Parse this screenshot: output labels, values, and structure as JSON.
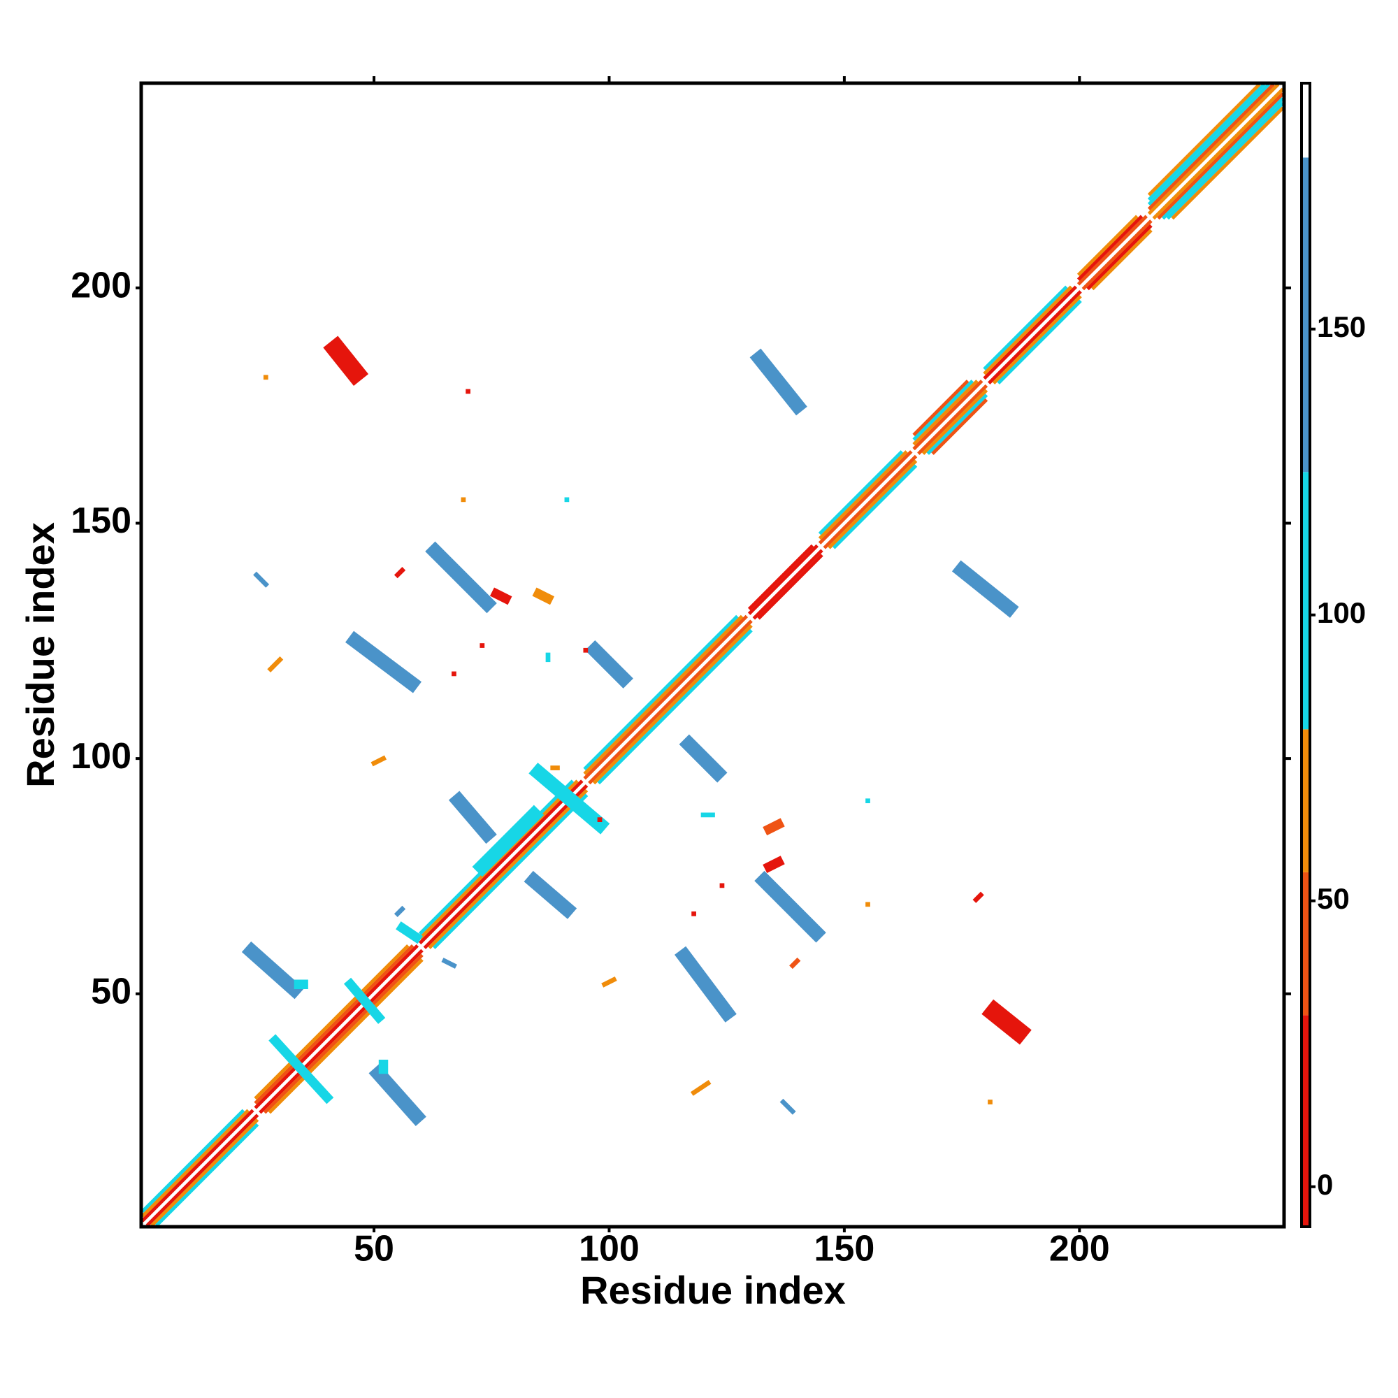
{
  "chart_data": {
    "type": "contact-map",
    "x_label": "Residue index",
    "y_label": "Residue index",
    "xlim": [
      0.5,
      243.5
    ],
    "ylim": [
      0.5,
      243.5
    ],
    "xticks": [
      50,
      100,
      150,
      200
    ],
    "yticks": [
      50,
      100,
      150,
      200
    ],
    "colorbar": {
      "lim": [
        -7,
        193
      ],
      "ticks": [
        0,
        50,
        100,
        150
      ],
      "levels": [
        -7,
        30,
        55,
        80,
        125,
        180,
        193
      ],
      "colors": [
        "#e5150c",
        "#ef5314",
        "#f08c0a",
        "#17d6e6",
        "#4a93c9",
        "#ffffff"
      ]
    },
    "diagonal": [
      {
        "start": 1,
        "end": 243,
        "offset": 0,
        "value": 190
      },
      {
        "start": 1,
        "end": 25,
        "offset": 1,
        "value": 15
      },
      {
        "start": 1,
        "end": 25,
        "offset": 2,
        "value": 60
      },
      {
        "start": 1,
        "end": 25,
        "offset": 3,
        "value": 100
      },
      {
        "start": 25,
        "end": 60,
        "offset": 1,
        "value": 15
      },
      {
        "start": 25,
        "end": 60,
        "offset": 2,
        "value": 45
      },
      {
        "start": 25,
        "end": 60,
        "offset": 3,
        "value": 60
      },
      {
        "start": 60,
        "end": 95,
        "offset": 1,
        "value": 15
      },
      {
        "start": 60,
        "end": 95,
        "offset": 2,
        "value": 60
      },
      {
        "start": 60,
        "end": 95,
        "offset": 3,
        "value": 100
      },
      {
        "start": 95,
        "end": 130,
        "offset": 1,
        "value": 40
      },
      {
        "start": 95,
        "end": 130,
        "offset": 2,
        "value": 65
      },
      {
        "start": 95,
        "end": 130,
        "offset": 3,
        "value": 100
      },
      {
        "start": 130,
        "end": 145,
        "offset": 1,
        "value": 5
      },
      {
        "start": 130,
        "end": 145,
        "offset": 2,
        "value": 15
      },
      {
        "start": 145,
        "end": 165,
        "offset": 1,
        "value": 45
      },
      {
        "start": 145,
        "end": 165,
        "offset": 2,
        "value": 65
      },
      {
        "start": 145,
        "end": 165,
        "offset": 3,
        "value": 100
      },
      {
        "start": 165,
        "end": 180,
        "offset": 1,
        "value": 45
      },
      {
        "start": 165,
        "end": 180,
        "offset": 2,
        "value": 65
      },
      {
        "start": 165,
        "end": 180,
        "offset": 3,
        "value": 100
      },
      {
        "start": 165,
        "end": 180,
        "offset": 4,
        "value": 40
      },
      {
        "start": 180,
        "end": 200,
        "offset": 1,
        "value": 15
      },
      {
        "start": 180,
        "end": 200,
        "offset": 2,
        "value": 60
      },
      {
        "start": 180,
        "end": 200,
        "offset": 3,
        "value": 100
      },
      {
        "start": 200,
        "end": 215,
        "offset": 1,
        "value": 40
      },
      {
        "start": 200,
        "end": 215,
        "offset": 2,
        "value": 15
      },
      {
        "start": 200,
        "end": 215,
        "offset": 3,
        "value": 60
      },
      {
        "start": 215,
        "end": 243,
        "offset": 1,
        "value": 60
      },
      {
        "start": 215,
        "end": 243,
        "offset": 2,
        "value": 40
      },
      {
        "start": 215,
        "end": 243,
        "offset": 3,
        "value": 100
      },
      {
        "start": 215,
        "end": 243,
        "offset": 4,
        "value": 100
      },
      {
        "start": 215,
        "end": 243,
        "offset": 5,
        "value": 60
      }
    ],
    "symmetric_contacts": [
      {
        "x": [
          24,
          33
        ],
        "y": [
          59,
          51
        ],
        "value": 140,
        "width": 3
      },
      {
        "x": [
          46,
          58
        ],
        "y": [
          125,
          116
        ],
        "value": 140,
        "width": 3
      },
      {
        "x": [
          63,
          74
        ],
        "y": [
          144,
          133
        ],
        "value": 140,
        "width": 3
      },
      {
        "x": [
          68,
          74
        ],
        "y": [
          91,
          84
        ],
        "value": 140,
        "width": 3
      },
      {
        "x": [
          97,
          103
        ],
        "y": [
          123,
          117
        ],
        "value": 140,
        "width": 3
      },
      {
        "x": [
          42,
          46
        ],
        "y": [
          187,
          182
        ],
        "value": 10,
        "width": 4
      },
      {
        "x": [
          132,
          140
        ],
        "y": [
          185,
          175
        ],
        "value": 140,
        "width": 3
      },
      {
        "x": [
          34,
          35
        ],
        "y": [
          52,
          52
        ],
        "value": 100,
        "width": 2
      }
    ],
    "contacts": [
      {
        "x": [
          29,
          40
        ],
        "y": [
          40,
          28
        ],
        "value": 100,
        "width": 2
      },
      {
        "x": [
          45,
          51
        ],
        "y": [
          52,
          45
        ],
        "value": 100,
        "width": 2
      },
      {
        "x": [
          85,
          98
        ],
        "y": [
          97,
          86
        ],
        "value": 100,
        "width": 3
      },
      {
        "x": [
          73,
          84
        ],
        "y": [
          77,
          88
        ],
        "value": 100,
        "width": 3
      },
      {
        "x": [
          56,
          59
        ],
        "y": [
          64,
          62
        ],
        "value": 100,
        "width": 2
      },
      {
        "x": [
          27,
          27
        ],
        "y": [
          181,
          181
        ],
        "value": 60,
        "width": 1
      },
      {
        "x": [
          70,
          70
        ],
        "y": [
          178,
          178
        ],
        "value": 10,
        "width": 1
      },
      {
        "x": [
          69,
          69
        ],
        "y": [
          155,
          155
        ],
        "value": 60,
        "width": 1
      },
      {
        "x": [
          91,
          91
        ],
        "y": [
          155,
          155
        ],
        "value": 100,
        "width": 1
      },
      {
        "x": [
          25,
          27
        ],
        "y": [
          139,
          137
        ],
        "value": 140,
        "width": 1
      },
      {
        "x": [
          55,
          56
        ],
        "y": [
          139,
          140
        ],
        "value": 10,
        "width": 1
      },
      {
        "x": [
          76,
          78
        ],
        "y": [
          135,
          134
        ],
        "value": 10,
        "width": 2
      },
      {
        "x": [
          85,
          87
        ],
        "y": [
          135,
          134
        ],
        "value": 60,
        "width": 2
      },
      {
        "x": [
          28,
          30
        ],
        "y": [
          119,
          121
        ],
        "value": 60,
        "width": 1
      },
      {
        "x": [
          73,
          73
        ],
        "y": [
          124,
          124
        ],
        "value": 10,
        "width": 1
      },
      {
        "x": [
          67,
          67
        ],
        "y": [
          118,
          118
        ],
        "value": 10,
        "width": 1
      },
      {
        "x": [
          87,
          87
        ],
        "y": [
          122,
          121
        ],
        "value": 100,
        "width": 1
      },
      {
        "x": [
          95,
          95
        ],
        "y": [
          123,
          123
        ],
        "value": 10,
        "width": 1
      },
      {
        "x": [
          50,
          52
        ],
        "y": [
          99,
          100
        ],
        "value": 60,
        "width": 1
      },
      {
        "x": [
          88,
          89
        ],
        "y": [
          98,
          98
        ],
        "value": 60,
        "width": 1
      },
      {
        "x": [
          98,
          98
        ],
        "y": [
          87,
          87
        ],
        "value": 10,
        "width": 1
      },
      {
        "x": [
          120,
          122
        ],
        "y": [
          88,
          88
        ],
        "value": 100,
        "width": 1
      },
      {
        "x": [
          134,
          136
        ],
        "y": [
          85,
          86
        ],
        "value": 40,
        "width": 2
      },
      {
        "x": [
          134,
          136
        ],
        "y": [
          77,
          78
        ],
        "value": 10,
        "width": 2
      },
      {
        "x": [
          124,
          124
        ],
        "y": [
          73,
          73
        ],
        "value": 10,
        "width": 1
      },
      {
        "x": [
          118,
          118
        ],
        "y": [
          67,
          67
        ],
        "value": 10,
        "width": 1
      },
      {
        "x": [
          155,
          155
        ],
        "y": [
          91,
          91
        ],
        "value": 100,
        "width": 1
      },
      {
        "x": [
          155,
          155
        ],
        "y": [
          69,
          69
        ],
        "value": 60,
        "width": 1
      },
      {
        "x": [
          178,
          179
        ],
        "y": [
          70,
          71
        ],
        "value": 10,
        "width": 1
      },
      {
        "x": [
          99,
          101
        ],
        "y": [
          52,
          53
        ],
        "value": 60,
        "width": 1
      },
      {
        "x": [
          139,
          140
        ],
        "y": [
          56,
          57
        ],
        "value": 40,
        "width": 1
      },
      {
        "x": [
          55,
          56
        ],
        "y": [
          67,
          68
        ],
        "value": 140,
        "width": 1
      },
      {
        "x": [
          65,
          67
        ],
        "y": [
          57,
          56
        ],
        "value": 140,
        "width": 1
      },
      {
        "x": [
          118,
          121
        ],
        "y": [
          29,
          31
        ],
        "value": 60,
        "width": 1
      },
      {
        "x": [
          137,
          139
        ],
        "y": [
          27,
          25
        ],
        "value": 140,
        "width": 1
      },
      {
        "x": [
          181,
          181
        ],
        "y": [
          27,
          27
        ],
        "value": 60,
        "width": 1
      }
    ]
  }
}
